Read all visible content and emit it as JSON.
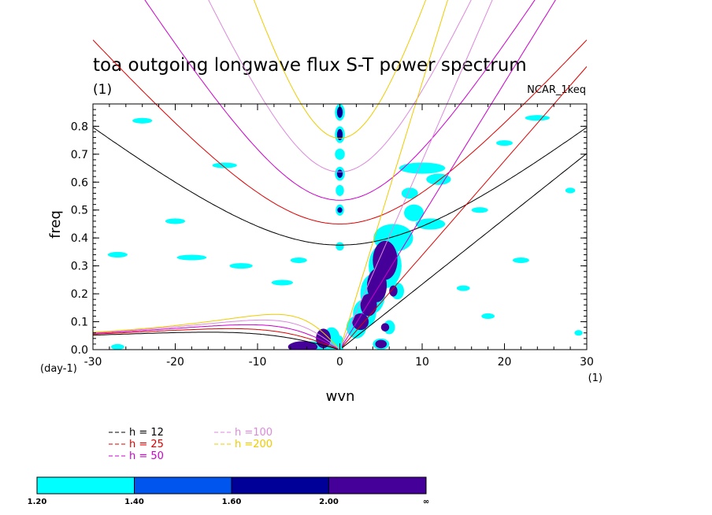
{
  "chart_data": {
    "type": "contour",
    "title": "toa outgoing longwave flux S-T power spectrum",
    "subtitle_left": "(1)",
    "subtitle_right": "NCAR_1keq",
    "xlabel": "wvn",
    "ylabel": "freq",
    "x_unit": "(1)",
    "y_unit": "(day-1)",
    "xlim": [
      -30,
      30
    ],
    "ylim": [
      0,
      0.88
    ],
    "xticks": [
      -30,
      -20,
      -10,
      0,
      10,
      20,
      30
    ],
    "xtick_labels": [
      "-30",
      "-20",
      "-10",
      "0",
      "10",
      "20",
      "30"
    ],
    "yticks": [
      0.0,
      0.1,
      0.2,
      0.3,
      0.4,
      0.5,
      0.6,
      0.7,
      0.8
    ],
    "ytick_labels": [
      "0.0",
      "0.1",
      "0.2",
      "0.3",
      "0.4",
      "0.5",
      "0.6",
      "0.7",
      "0.8"
    ],
    "dispersion_curves": [
      {
        "label": "h = 12",
        "h": 12,
        "color": "#000000"
      },
      {
        "label": "h = 25",
        "h": 25,
        "color": "#dd0000"
      },
      {
        "label": "h = 50",
        "h": 50,
        "color": "#cc00cc"
      },
      {
        "label": "h =100",
        "h": 100,
        "color": "#dd88dd"
      },
      {
        "label": "h =200",
        "h": 200,
        "color": "#eecc00"
      }
    ],
    "colorbar": {
      "levels": [
        "1.20",
        "1.40",
        "1.60",
        "2.00",
        "∞"
      ],
      "colors": [
        "#00ffff",
        "#0055ee",
        "#000099",
        "#440099"
      ]
    },
    "regions": [
      {
        "level": 0,
        "x": 0,
        "y": 0.02,
        "rx": 0.5,
        "ry": 0.03
      },
      {
        "level": 0,
        "x": -1,
        "y": 0.04,
        "rx": 1.0,
        "ry": 0.04
      },
      {
        "level": 0,
        "x": -3,
        "y": 0.01,
        "rx": 3.0,
        "ry": 0.02
      },
      {
        "level": 0,
        "x": 2,
        "y": 0.08,
        "rx": 1.2,
        "ry": 0.04
      },
      {
        "level": 0,
        "x": 3,
        "y": 0.13,
        "rx": 1.4,
        "ry": 0.05
      },
      {
        "level": 0,
        "x": 4,
        "y": 0.2,
        "rx": 1.5,
        "ry": 0.07
      },
      {
        "level": 0,
        "x": 5.5,
        "y": 0.3,
        "rx": 2.0,
        "ry": 0.08
      },
      {
        "level": 0,
        "x": 6.5,
        "y": 0.4,
        "rx": 2.4,
        "ry": 0.05
      },
      {
        "level": 0,
        "x": 9,
        "y": 0.49,
        "rx": 1.2,
        "ry": 0.03
      },
      {
        "level": 0,
        "x": 11,
        "y": 0.45,
        "rx": 1.8,
        "ry": 0.02
      },
      {
        "level": 0,
        "x": 10,
        "y": 0.65,
        "rx": 2.8,
        "ry": 0.02
      },
      {
        "level": 0,
        "x": 12,
        "y": 0.61,
        "rx": 1.5,
        "ry": 0.02
      },
      {
        "level": 0,
        "x": 8.5,
        "y": 0.56,
        "rx": 1.0,
        "ry": 0.02
      },
      {
        "level": 0,
        "x": 7,
        "y": 0.21,
        "rx": 0.8,
        "ry": 0.03
      },
      {
        "level": 0,
        "x": 6,
        "y": 0.08,
        "rx": 0.7,
        "ry": 0.025
      },
      {
        "level": 0,
        "x": 5,
        "y": 0.02,
        "rx": 1.0,
        "ry": 0.02
      },
      {
        "level": 0,
        "x": 0,
        "y": 0.85,
        "rx": 0.6,
        "ry": 0.03
      },
      {
        "level": 0,
        "x": 0,
        "y": 0.77,
        "rx": 0.6,
        "ry": 0.03
      },
      {
        "level": 0,
        "x": 0,
        "y": 0.7,
        "rx": 0.6,
        "ry": 0.02
      },
      {
        "level": 0,
        "x": 0,
        "y": 0.63,
        "rx": 0.6,
        "ry": 0.025
      },
      {
        "level": 0,
        "x": 0,
        "y": 0.57,
        "rx": 0.5,
        "ry": 0.02
      },
      {
        "level": 0,
        "x": 0,
        "y": 0.5,
        "rx": 0.5,
        "ry": 0.02
      },
      {
        "level": 0,
        "x": 0,
        "y": 0.37,
        "rx": 0.5,
        "ry": 0.015
      },
      {
        "level": 0,
        "x": -24,
        "y": 0.82,
        "rx": 1.2,
        "ry": 0.01
      },
      {
        "level": 0,
        "x": -14,
        "y": 0.66,
        "rx": 1.5,
        "ry": 0.01
      },
      {
        "level": 0,
        "x": -12,
        "y": 0.3,
        "rx": 1.4,
        "ry": 0.01
      },
      {
        "level": 0,
        "x": -18,
        "y": 0.33,
        "rx": 1.8,
        "ry": 0.01
      },
      {
        "level": 0,
        "x": -27,
        "y": 0.34,
        "rx": 1.2,
        "ry": 0.01
      },
      {
        "level": 0,
        "x": -20,
        "y": 0.46,
        "rx": 1.2,
        "ry": 0.01
      },
      {
        "level": 0,
        "x": -7,
        "y": 0.24,
        "rx": 1.3,
        "ry": 0.01
      },
      {
        "level": 0,
        "x": -5,
        "y": 0.32,
        "rx": 1.0,
        "ry": 0.01
      },
      {
        "level": 0,
        "x": -27,
        "y": 0.01,
        "rx": 0.8,
        "ry": 0.01
      },
      {
        "level": 0,
        "x": 24,
        "y": 0.83,
        "rx": 1.5,
        "ry": 0.01
      },
      {
        "level": 0,
        "x": 20,
        "y": 0.74,
        "rx": 1.0,
        "ry": 0.01
      },
      {
        "level": 0,
        "x": 28,
        "y": 0.57,
        "rx": 0.6,
        "ry": 0.01
      },
      {
        "level": 0,
        "x": 17,
        "y": 0.5,
        "rx": 1.0,
        "ry": 0.01
      },
      {
        "level": 0,
        "x": 22,
        "y": 0.32,
        "rx": 1.0,
        "ry": 0.01
      },
      {
        "level": 0,
        "x": 15,
        "y": 0.22,
        "rx": 0.8,
        "ry": 0.01
      },
      {
        "level": 0,
        "x": 18,
        "y": 0.12,
        "rx": 0.8,
        "ry": 0.01
      },
      {
        "level": 0,
        "x": 29,
        "y": 0.06,
        "rx": 0.5,
        "ry": 0.01
      },
      {
        "level": 2,
        "x": 0,
        "y": 0.85,
        "rx": 0.35,
        "ry": 0.02
      },
      {
        "level": 2,
        "x": 0,
        "y": 0.77,
        "rx": 0.35,
        "ry": 0.02
      },
      {
        "level": 2,
        "x": 0,
        "y": 0.63,
        "rx": 0.35,
        "ry": 0.015
      },
      {
        "level": 2,
        "x": 0,
        "y": 0.5,
        "rx": 0.3,
        "ry": 0.01
      },
      {
        "level": 3,
        "x": -4.5,
        "y": 0.01,
        "rx": 1.8,
        "ry": 0.02
      },
      {
        "level": 3,
        "x": -2,
        "y": 0.04,
        "rx": 0.9,
        "ry": 0.035
      },
      {
        "level": 3,
        "x": 2.5,
        "y": 0.1,
        "rx": 1.0,
        "ry": 0.03
      },
      {
        "level": 3,
        "x": 3.5,
        "y": 0.16,
        "rx": 1.0,
        "ry": 0.04
      },
      {
        "level": 3,
        "x": 4.5,
        "y": 0.23,
        "rx": 1.2,
        "ry": 0.06
      },
      {
        "level": 3,
        "x": 5.5,
        "y": 0.32,
        "rx": 1.5,
        "ry": 0.07
      },
      {
        "level": 3,
        "x": 6.5,
        "y": 0.21,
        "rx": 0.5,
        "ry": 0.02
      },
      {
        "level": 3,
        "x": 5,
        "y": 0.02,
        "rx": 0.7,
        "ry": 0.015
      },
      {
        "level": 3,
        "x": 5.5,
        "y": 0.08,
        "rx": 0.5,
        "ry": 0.015
      }
    ]
  }
}
